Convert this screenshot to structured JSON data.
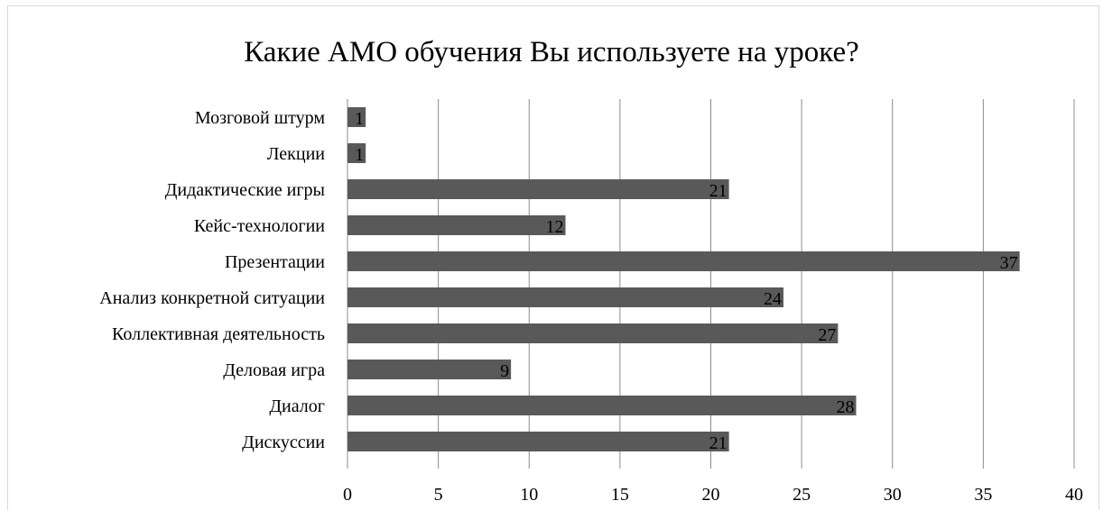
{
  "chart_data": {
    "type": "bar",
    "orientation": "horizontal",
    "title": "Какие АМО обучения Вы используете на уроке?",
    "categories": [
      "Мозговой штурм",
      "Лекции",
      "Дидактические игры",
      "Кейс-технологии",
      "Презентации",
      "Анализ конкретной ситуации",
      "Коллективная деятельность",
      "Деловая игра",
      "Диалог",
      "Дискуссии"
    ],
    "values": [
      1,
      1,
      21,
      12,
      37,
      24,
      27,
      9,
      28,
      21
    ],
    "xlim": [
      0,
      40
    ],
    "x_ticks": [
      0,
      5,
      10,
      15,
      20,
      25,
      30,
      35,
      40
    ],
    "xlabel": "",
    "ylabel": "",
    "grid": "vertical",
    "legend": "none",
    "bar_color": "#595959",
    "gridline_color": "#8c8c8c"
  }
}
